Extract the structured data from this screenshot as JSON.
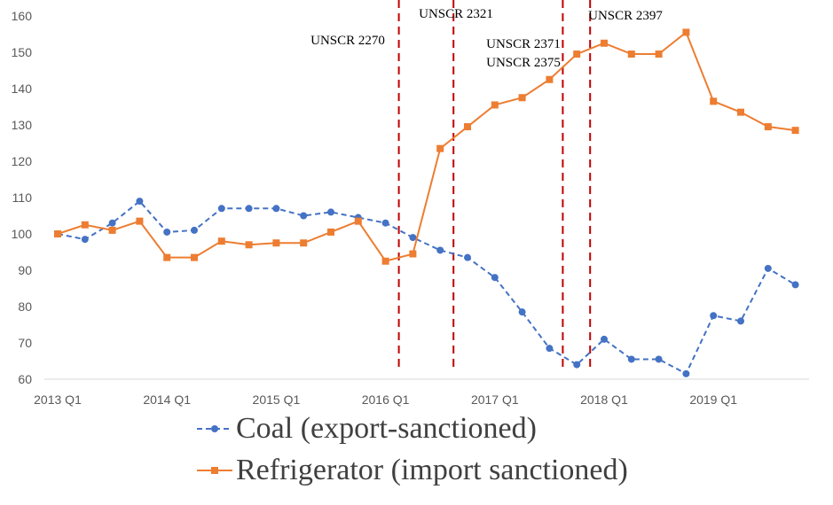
{
  "chart_data": {
    "type": "line",
    "title": "",
    "xlabel": "",
    "ylabel": "",
    "ylim": [
      60,
      160
    ],
    "yticks": [
      60,
      70,
      80,
      90,
      100,
      110,
      120,
      130,
      140,
      150,
      160
    ],
    "x_tick_labels": [
      {
        "label": "2013 Q1",
        "index": 0
      },
      {
        "label": "2014 Q1",
        "index": 4
      },
      {
        "label": "2015 Q1",
        "index": 8
      },
      {
        "label": "2016 Q1",
        "index": 12
      },
      {
        "label": "2017 Q1",
        "index": 16
      },
      {
        "label": "2018 Q1",
        "index": 20
      },
      {
        "label": "2019 Q1",
        "index": 24
      }
    ],
    "x": [
      "2013 Q1",
      "2013 Q2",
      "2013 Q3",
      "2013 Q4",
      "2014 Q1",
      "2014 Q2",
      "2014 Q3",
      "2014 Q4",
      "2015 Q1",
      "2015 Q2",
      "2015 Q3",
      "2015 Q4",
      "2016 Q1",
      "2016 Q2",
      "2016 Q3",
      "2016 Q4",
      "2017 Q1",
      "2017 Q2",
      "2017 Q3",
      "2017 Q4",
      "2018 Q1",
      "2018 Q2",
      "2018 Q3",
      "2018 Q4",
      "2019 Q1",
      "2019 Q2",
      "2019 Q3",
      "2019 Q4"
    ],
    "grid": false,
    "legend": "bottom",
    "series": [
      {
        "name": "Coal (export-sanctioned)",
        "color": "#4472C4",
        "style": "dashed",
        "marker": "circle",
        "values": [
          100,
          98.5,
          103,
          109,
          100.5,
          101,
          107,
          107,
          107,
          105,
          106,
          104.5,
          103,
          99,
          95.5,
          93.5,
          88,
          78.5,
          68.5,
          64,
          71,
          65.5,
          65.5,
          61.5,
          77.5,
          76,
          90.5,
          86
        ]
      },
      {
        "name": "Refrigerator (import sanctioned)",
        "color": "#ED7D31",
        "style": "solid",
        "marker": "square",
        "values": [
          100,
          102.5,
          101,
          103.5,
          93.5,
          93.5,
          98,
          97,
          97.5,
          97.5,
          100.5,
          103.5,
          92.5,
          94.5,
          123.5,
          129.5,
          135.5,
          137.5,
          142.5,
          149.5,
          152.5,
          149.5,
          149.5,
          155.5,
          136.5,
          133.5,
          129.5,
          128.5
        ]
      }
    ],
    "annotations": [
      {
        "text": "UNSCR 2270",
        "x_index": 12
      },
      {
        "text": "UNSCR 2321",
        "x_index": 14
      },
      {
        "text": "UNSCR 2371",
        "x_index": 18
      },
      {
        "text": "UNSCR 2375",
        "x_index": 18
      },
      {
        "text": "UNSCR 2397",
        "x_index": 19
      }
    ],
    "annotation_color": "#C00000"
  }
}
